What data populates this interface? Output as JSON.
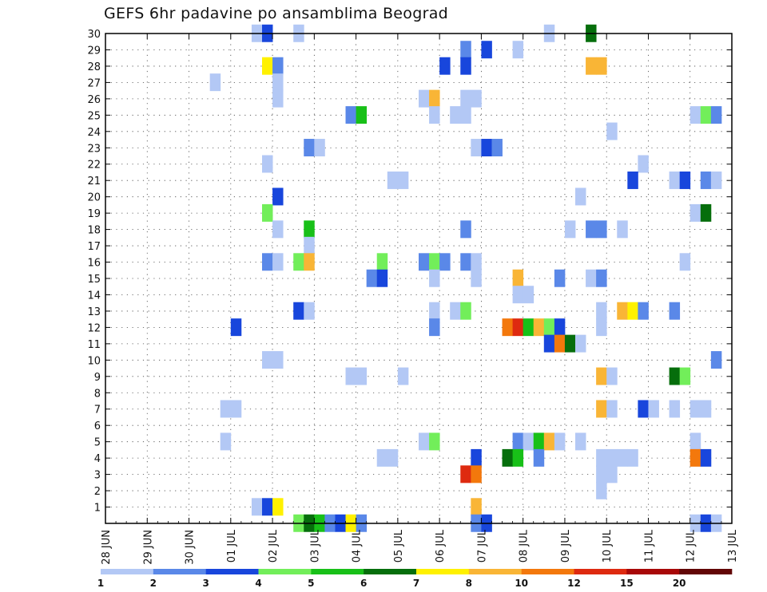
{
  "chart_data": {
    "type": "heatmap",
    "title": "GEFS 6hr padavine po ansamblima Beograd",
    "xlabel": "",
    "ylabel": "",
    "x_start": "2020-06-28",
    "x_end": "2020-07-13",
    "x_tick_labels": [
      "28 JUN",
      "29 JUN",
      "30 JUN",
      "01 JUL",
      "02 JUL",
      "03 JUL",
      "04 JUL",
      "05 JUL",
      "06 JUL",
      "07 JUL",
      "08 JUL",
      "09 JUL",
      "10 JUL",
      "11 JUL",
      "12 JUL",
      "13 JUL"
    ],
    "y_tick_labels": [
      "1",
      "2",
      "3",
      "4",
      "5",
      "6",
      "7",
      "8",
      "9",
      "10",
      "11",
      "12",
      "13",
      "14",
      "15",
      "16",
      "17",
      "18",
      "19",
      "20",
      "21",
      "22",
      "23",
      "24",
      "25",
      "26",
      "27",
      "28",
      "29",
      "30"
    ],
    "ylim": [
      0,
      30
    ],
    "grid": true,
    "colorbar": {
      "placement": "bottom",
      "labels": [
        "1",
        "2",
        "3",
        "4",
        "5",
        "6",
        "7",
        "8",
        "10",
        "12",
        "15",
        "20"
      ],
      "levels": [
        1,
        2,
        3,
        4,
        5,
        6,
        7,
        8,
        10,
        12,
        15,
        20
      ],
      "colors": [
        "#b3c8f5",
        "#5a88e8",
        "#1846dc",
        "#72ee5a",
        "#18c018",
        "#066e0c",
        "#fff100",
        "#f9b536",
        "#f3780c",
        "#de2a10",
        "#a80808",
        "#620606"
      ]
    },
    "cells": [
      [
        "2020-07-01 12:00",
        30,
        1
      ],
      [
        "2020-07-01 18:00",
        30,
        3
      ],
      [
        "2020-07-02 12:00",
        30,
        1
      ],
      [
        "2020-07-08 12:00",
        30,
        1
      ],
      [
        "2020-07-09 12:00",
        30,
        6
      ],
      [
        "2020-07-06 12:00",
        29,
        2
      ],
      [
        "2020-07-07 00:00",
        29,
        3
      ],
      [
        "2020-07-07 18:00",
        29,
        1
      ],
      [
        "2020-07-01 18:00",
        28,
        7
      ],
      [
        "2020-07-02 00:00",
        28,
        2
      ],
      [
        "2020-07-06 00:00",
        28,
        3
      ],
      [
        "2020-07-06 12:00",
        28,
        3
      ],
      [
        "2020-07-09 12:00",
        28,
        8
      ],
      [
        "2020-07-09 18:00",
        28,
        8
      ],
      [
        "2020-06-30 12:00",
        27,
        1
      ],
      [
        "2020-07-02 00:00",
        27,
        1
      ],
      [
        "2020-07-02 00:00",
        26,
        1
      ],
      [
        "2020-07-05 12:00",
        26,
        1
      ],
      [
        "2020-07-05 18:00",
        26,
        9
      ],
      [
        "2020-07-06 12:00",
        26,
        1
      ],
      [
        "2020-07-06 18:00",
        26,
        1
      ],
      [
        "2020-07-03 18:00",
        25,
        2
      ],
      [
        "2020-07-04 00:00",
        25,
        5
      ],
      [
        "2020-07-05 18:00",
        25,
        1
      ],
      [
        "2020-07-06 06:00",
        25,
        1
      ],
      [
        "2020-07-06 12:00",
        25,
        1
      ],
      [
        "2020-07-12 00:00",
        25,
        1
      ],
      [
        "2020-07-12 06:00",
        25,
        4
      ],
      [
        "2020-07-12 12:00",
        25,
        2
      ],
      [
        "2020-07-10 00:00",
        24,
        1
      ],
      [
        "2020-07-02 18:00",
        23,
        2
      ],
      [
        "2020-07-03 00:00",
        23,
        1
      ],
      [
        "2020-07-06 18:00",
        23,
        1
      ],
      [
        "2020-07-07 00:00",
        23,
        3
      ],
      [
        "2020-07-07 06:00",
        23,
        2
      ],
      [
        "2020-07-01 18:00",
        22,
        1
      ],
      [
        "2020-07-10 18:00",
        22,
        1
      ],
      [
        "2020-07-04 18:00",
        21,
        1
      ],
      [
        "2020-07-05 00:00",
        21,
        1
      ],
      [
        "2020-07-10 12:00",
        21,
        3
      ],
      [
        "2020-07-11 12:00",
        21,
        1
      ],
      [
        "2020-07-11 18:00",
        21,
        3
      ],
      [
        "2020-07-12 06:00",
        21,
        2
      ],
      [
        "2020-07-12 12:00",
        21,
        1
      ],
      [
        "2020-07-02 00:00",
        20,
        3
      ],
      [
        "2020-07-09 06:00",
        20,
        1
      ],
      [
        "2020-07-01 18:00",
        19,
        4
      ],
      [
        "2020-07-12 00:00",
        19,
        1
      ],
      [
        "2020-07-12 06:00",
        19,
        6
      ],
      [
        "2020-07-02 00:00",
        18,
        1
      ],
      [
        "2020-07-02 18:00",
        18,
        5
      ],
      [
        "2020-07-06 12:00",
        18,
        2
      ],
      [
        "2020-07-09 00:00",
        18,
        1
      ],
      [
        "2020-07-09 12:00",
        18,
        2
      ],
      [
        "2020-07-09 18:00",
        18,
        2
      ],
      [
        "2020-07-10 06:00",
        18,
        1
      ],
      [
        "2020-07-02 18:00",
        17,
        1
      ],
      [
        "2020-07-01 18:00",
        16,
        2
      ],
      [
        "2020-07-02 00:00",
        16,
        1
      ],
      [
        "2020-07-02 12:00",
        16,
        4
      ],
      [
        "2020-07-02 18:00",
        16,
        8
      ],
      [
        "2020-07-04 12:00",
        16,
        4
      ],
      [
        "2020-07-05 12:00",
        16,
        2
      ],
      [
        "2020-07-05 18:00",
        16,
        4
      ],
      [
        "2020-07-06 00:00",
        16,
        2
      ],
      [
        "2020-07-06 12:00",
        16,
        2
      ],
      [
        "2020-07-06 18:00",
        16,
        1
      ],
      [
        "2020-07-11 18:00",
        16,
        1
      ],
      [
        "2020-07-04 06:00",
        15,
        2
      ],
      [
        "2020-07-04 12:00",
        15,
        3
      ],
      [
        "2020-07-05 18:00",
        15,
        1
      ],
      [
        "2020-07-06 18:00",
        15,
        1
      ],
      [
        "2020-07-07 18:00",
        15,
        9
      ],
      [
        "2020-07-08 18:00",
        15,
        2
      ],
      [
        "2020-07-09 12:00",
        15,
        1
      ],
      [
        "2020-07-09 18:00",
        15,
        2
      ],
      [
        "2020-07-07 18:00",
        14,
        1
      ],
      [
        "2020-07-08 00:00",
        14,
        1
      ],
      [
        "2020-07-02 12:00",
        13,
        3
      ],
      [
        "2020-07-02 18:00",
        13,
        1
      ],
      [
        "2020-07-05 18:00",
        13,
        1
      ],
      [
        "2020-07-06 06:00",
        13,
        1
      ],
      [
        "2020-07-06 12:00",
        13,
        4
      ],
      [
        "2020-07-09 18:00",
        13,
        1
      ],
      [
        "2020-07-10 06:00",
        13,
        8
      ],
      [
        "2020-07-10 12:00",
        13,
        7
      ],
      [
        "2020-07-10 18:00",
        13,
        2
      ],
      [
        "2020-07-11 12:00",
        13,
        2
      ],
      [
        "2020-07-01 00:00",
        12,
        3
      ],
      [
        "2020-07-05 18:00",
        12,
        2
      ],
      [
        "2020-07-07 12:00",
        12,
        10
      ],
      [
        "2020-07-07 18:00",
        12,
        12
      ],
      [
        "2020-07-08 00:00",
        12,
        5
      ],
      [
        "2020-07-08 06:00",
        12,
        8
      ],
      [
        "2020-07-08 12:00",
        12,
        4
      ],
      [
        "2020-07-08 18:00",
        12,
        3
      ],
      [
        "2020-07-09 18:00",
        12,
        1
      ],
      [
        "2020-07-08 12:00",
        11,
        3
      ],
      [
        "2020-07-08 18:00",
        11,
        11
      ],
      [
        "2020-07-09 00:00",
        11,
        6
      ],
      [
        "2020-07-09 06:00",
        11,
        1
      ],
      [
        "2020-07-01 18:00",
        10,
        1
      ],
      [
        "2020-07-02 00:00",
        10,
        1
      ],
      [
        "2020-07-12 12:00",
        10,
        2
      ],
      [
        "2020-07-03 18:00",
        9,
        1
      ],
      [
        "2020-07-04 00:00",
        9,
        1
      ],
      [
        "2020-07-05 00:00",
        9,
        1
      ],
      [
        "2020-07-09 18:00",
        9,
        8
      ],
      [
        "2020-07-10 00:00",
        9,
        1
      ],
      [
        "2020-07-11 12:00",
        9,
        6
      ],
      [
        "2020-07-11 18:00",
        9,
        4
      ],
      [
        "2020-06-30 18:00",
        7,
        1
      ],
      [
        "2020-07-01 00:00",
        7,
        1
      ],
      [
        "2020-07-09 18:00",
        7,
        9
      ],
      [
        "2020-07-10 00:00",
        7,
        1
      ],
      [
        "2020-07-10 18:00",
        7,
        3
      ],
      [
        "2020-07-11 00:00",
        7,
        1
      ],
      [
        "2020-07-11 12:00",
        7,
        1
      ],
      [
        "2020-07-12 00:00",
        7,
        1
      ],
      [
        "2020-07-12 06:00",
        7,
        1
      ],
      [
        "2020-06-30 18:00",
        5,
        1
      ],
      [
        "2020-07-05 12:00",
        5,
        1
      ],
      [
        "2020-07-05 18:00",
        5,
        4
      ],
      [
        "2020-07-07 18:00",
        5,
        2
      ],
      [
        "2020-07-08 00:00",
        5,
        1
      ],
      [
        "2020-07-08 06:00",
        5,
        5
      ],
      [
        "2020-07-08 12:00",
        5,
        9
      ],
      [
        "2020-07-08 18:00",
        5,
        1
      ],
      [
        "2020-07-09 06:00",
        5,
        1
      ],
      [
        "2020-07-12 00:00",
        5,
        1
      ],
      [
        "2020-07-04 12:00",
        4,
        1
      ],
      [
        "2020-07-04 18:00",
        4,
        1
      ],
      [
        "2020-07-06 18:00",
        4,
        3
      ],
      [
        "2020-07-07 12:00",
        4,
        6
      ],
      [
        "2020-07-07 18:00",
        4,
        5
      ],
      [
        "2020-07-08 06:00",
        4,
        2
      ],
      [
        "2020-07-09 18:00",
        4,
        1
      ],
      [
        "2020-07-10 00:00",
        4,
        1
      ],
      [
        "2020-07-10 06:00",
        4,
        1
      ],
      [
        "2020-07-10 12:00",
        4,
        1
      ],
      [
        "2020-07-12 00:00",
        4,
        11
      ],
      [
        "2020-07-12 06:00",
        4,
        3
      ],
      [
        "2020-07-06 12:00",
        3,
        12
      ],
      [
        "2020-07-06 18:00",
        3,
        11
      ],
      [
        "2020-07-09 18:00",
        3,
        1
      ],
      [
        "2020-07-10 00:00",
        3,
        1
      ],
      [
        "2020-07-09 18:00",
        2,
        1
      ],
      [
        "2020-07-01 12:00",
        1,
        1
      ],
      [
        "2020-07-01 18:00",
        1,
        3
      ],
      [
        "2020-07-02 00:00",
        1,
        7
      ],
      [
        "2020-07-06 18:00",
        1,
        9
      ],
      [
        "2020-07-02 12:00",
        0,
        4
      ],
      [
        "2020-07-02 18:00",
        0,
        6
      ],
      [
        "2020-07-03 00:00",
        0,
        5
      ],
      [
        "2020-07-03 06:00",
        0,
        2
      ],
      [
        "2020-07-03 12:00",
        0,
        3
      ],
      [
        "2020-07-03 18:00",
        0,
        7
      ],
      [
        "2020-07-04 00:00",
        0,
        2
      ],
      [
        "2020-07-06 18:00",
        0,
        2
      ],
      [
        "2020-07-07 00:00",
        0,
        3
      ],
      [
        "2020-07-12 00:00",
        0,
        1
      ],
      [
        "2020-07-12 06:00",
        0,
        3
      ],
      [
        "2020-07-12 12:00",
        0,
        1
      ]
    ]
  }
}
